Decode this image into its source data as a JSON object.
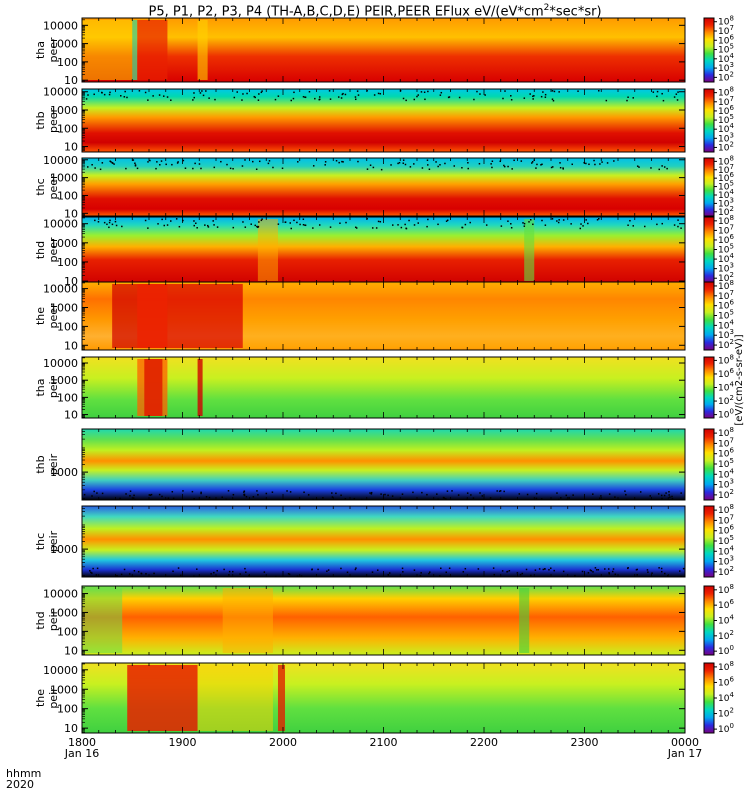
{
  "chart_data": {
    "type": "heatmap",
    "title": "P5, P1, P2, P3, P4 (TH-A,B,C,D,E) PEIR,PEER EFlux eV/(eV*cm^2*sec*sr)",
    "title_parts": {
      "prefix": "P5, P1, P2, P3, P4 (TH-A,B,C,D,E) PEIR,PEER EFlux eV/(eV*cm",
      "sup": "2",
      "suffix": "*sec*sr)"
    },
    "x_axis": {
      "row_labels": [
        "hhmm",
        "2020"
      ],
      "ticks": [
        "1800",
        "1900",
        "2000",
        "2100",
        "2200",
        "2300",
        "0000"
      ],
      "tick_values_hours": [
        18,
        19,
        20,
        21,
        22,
        23,
        24
      ],
      "date_labels": [
        "Jan 16",
        "Jan 17"
      ],
      "range_hours": [
        18,
        24
      ]
    },
    "colorbar": {
      "units_label": "[eV/(cm2-s-sr-eV)]",
      "colors": [
        "#7a0080",
        "#2a2ae0",
        "#00a8f0",
        "#00d8c0",
        "#40e040",
        "#c8f020",
        "#ffe000",
        "#ff8800",
        "#ee2200",
        "#d00000"
      ]
    },
    "panels": [
      {
        "id": "tha-peer",
        "label": "tha",
        "sublabel": "peer",
        "y_ticks": [
          "10",
          "100",
          "1000",
          "10000"
        ],
        "y_range_log": [
          0.9,
          4.4
        ],
        "cbar_ticks": [
          "10^2",
          "10^3",
          "10^4",
          "10^5",
          "10^6",
          "10^7",
          "10^8"
        ],
        "cbar_range_log": [
          1.5,
          8.4
        ]
      },
      {
        "id": "thb-peer",
        "label": "thb",
        "sublabel": "peer",
        "y_ticks": [
          "10",
          "100",
          "1000",
          "10000"
        ],
        "y_range_log": [
          0.7,
          4.15
        ],
        "cbar_ticks": [
          "10^2",
          "10^3",
          "10^4",
          "10^5",
          "10^6",
          "10^7",
          "10^8"
        ],
        "cbar_range_log": [
          1.5,
          8.4
        ]
      },
      {
        "id": "thc-peer",
        "label": "thc",
        "sublabel": "peer",
        "y_ticks": [
          "10",
          "100",
          "1000",
          "10000"
        ],
        "y_range_log": [
          0.85,
          4.1
        ],
        "cbar_ticks": [
          "10^2",
          "10^3",
          "10^4",
          "10^5",
          "10^6",
          "10^7",
          "10^8"
        ],
        "cbar_range_log": [
          1.5,
          8.4
        ]
      },
      {
        "id": "thd-peer",
        "label": "thd",
        "sublabel": "peer",
        "y_ticks": [
          "10",
          "100",
          "1000",
          "10000"
        ],
        "y_range_log": [
          0.9,
          4.35
        ],
        "cbar_ticks": [
          "10^2",
          "10^3",
          "10^4",
          "10^5",
          "10^6",
          "10^7",
          "10^8"
        ],
        "cbar_range_log": [
          1.5,
          8.4
        ]
      },
      {
        "id": "the-peer",
        "label": "the",
        "sublabel": "peer",
        "y_ticks": [
          "10",
          "100",
          "1000",
          "10000"
        ],
        "y_range_log": [
          0.75,
          4.35
        ],
        "cbar_ticks": [
          "10^2",
          "10^3",
          "10^4",
          "10^5",
          "10^6",
          "10^7",
          "10^8"
        ],
        "cbar_range_log": [
          1.5,
          8.4
        ]
      },
      {
        "id": "tha-peir",
        "label": "tha",
        "sublabel": "peir",
        "y_ticks": [
          "10",
          "100",
          "1000",
          "10000"
        ],
        "y_range_log": [
          0.8,
          4.35
        ],
        "cbar_ticks": [
          "10^0",
          "10^2",
          "10^4",
          "10^6",
          "10^8"
        ],
        "cbar_range_log": [
          -0.5,
          8.5
        ]
      },
      {
        "id": "thb-peir",
        "label": "thb",
        "sublabel": "peir",
        "y_ticks": [
          "1000"
        ],
        "y_range_log": [
          1.9,
          4.7
        ],
        "cbar_ticks": [
          "10^2",
          "10^3",
          "10^4",
          "10^5",
          "10^6",
          "10^7",
          "10^8"
        ],
        "cbar_range_log": [
          1.5,
          8.4
        ]
      },
      {
        "id": "thc-peir",
        "label": "thc",
        "sublabel": "peir",
        "y_ticks": [
          "1000"
        ],
        "y_range_log": [
          1.9,
          4.7
        ],
        "cbar_ticks": [
          "10^2",
          "10^3",
          "10^4",
          "10^5",
          "10^6",
          "10^7",
          "10^8"
        ],
        "cbar_range_log": [
          1.5,
          8.4
        ]
      },
      {
        "id": "thd-peir",
        "label": "thd",
        "sublabel": "peir",
        "y_ticks": [
          "10",
          "100",
          "1000",
          "10000"
        ],
        "y_range_log": [
          0.75,
          4.4
        ],
        "cbar_ticks": [
          "10^0",
          "10^2",
          "10^4",
          "10^6",
          "10^8"
        ],
        "cbar_range_log": [
          -0.5,
          8.5
        ]
      },
      {
        "id": "the-peir",
        "label": "the",
        "sublabel": "peir",
        "y_ticks": [
          "10",
          "100",
          "1000",
          "10000"
        ],
        "y_range_log": [
          0.75,
          4.35
        ],
        "cbar_ticks": [
          "10^0",
          "10^2",
          "10^4",
          "10^6",
          "10^8"
        ],
        "cbar_range_log": [
          -0.5,
          8.5
        ]
      }
    ]
  }
}
